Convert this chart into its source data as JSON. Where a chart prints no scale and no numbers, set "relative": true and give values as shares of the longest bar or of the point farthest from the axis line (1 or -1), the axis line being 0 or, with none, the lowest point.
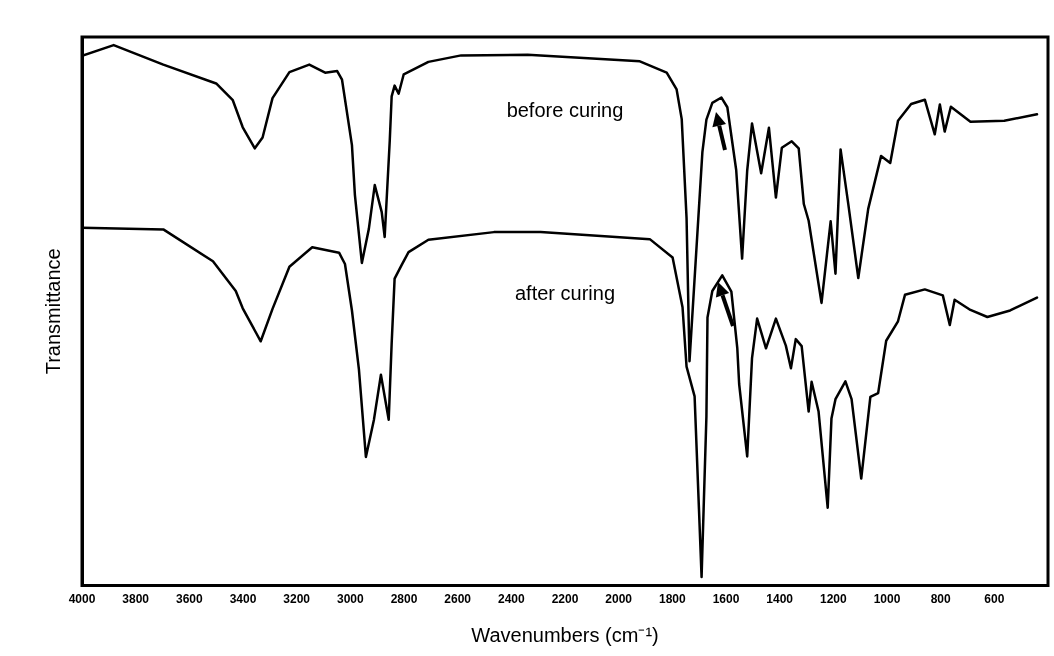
{
  "chart_data": {
    "type": "line",
    "relative": true,
    "xlabel": "Wavenumbers (cm⁻¹)",
    "ylabel": "Transmittance",
    "xlim": [
      4000,
      400
    ],
    "xticks": [
      4000,
      3800,
      3600,
      3400,
      3200,
      3000,
      2800,
      2600,
      2400,
      2200,
      2000,
      1800,
      1600,
      1400,
      1200,
      1000,
      800,
      600
    ],
    "grid": false,
    "legend": false,
    "series": [
      {
        "name": "before curing",
        "color": "#000000",
        "x": [
          4000,
          3882,
          3697,
          3500,
          3438,
          3401,
          3356,
          3327,
          3290,
          3227,
          3153,
          3094,
          3049,
          3031,
          2994,
          2983,
          2957,
          2931,
          2909,
          2883,
          2872,
          2853,
          2846,
          2835,
          2820,
          2801,
          2709,
          2587,
          2339,
          2291,
          1921,
          1821,
          1784,
          1765,
          1747,
          1736,
          1688,
          1673,
          1651,
          1617,
          1595,
          1562,
          1540,
          1521,
          1503,
          1469,
          1440,
          1414,
          1392,
          1355,
          1329,
          1310,
          1292,
          1244,
          1210,
          1192,
          1173,
          1144,
          1107,
          1070,
          1022,
          988,
          959,
          910,
          859,
          822,
          803,
          785,
          762,
          689,
          563,
          441
        ],
        "values": [
          0.98,
          1,
          0.964,
          0.929,
          0.898,
          0.848,
          0.809,
          0.829,
          0.902,
          0.95,
          0.964,
          0.949,
          0.952,
          0.936,
          0.815,
          0.723,
          0.597,
          0.66,
          0.741,
          0.691,
          0.645,
          0.824,
          0.905,
          0.925,
          0.91,
          0.946,
          0.969,
          0.981,
          0.982,
          0.981,
          0.97,
          0.949,
          0.918,
          0.863,
          0.68,
          0.415,
          0.802,
          0.862,
          0.893,
          0.903,
          0.885,
          0.769,
          0.605,
          0.768,
          0.855,
          0.763,
          0.847,
          0.718,
          0.81,
          0.822,
          0.809,
          0.706,
          0.675,
          0.523,
          0.674,
          0.577,
          0.807,
          0.705,
          0.569,
          0.697,
          0.795,
          0.782,
          0.86,
          0.891,
          0.899,
          0.835,
          0.89,
          0.84,
          0.886,
          0.858,
          0.86,
          0.872
        ]
      },
      {
        "name": "after curing",
        "color": "#000000",
        "x": [
          4000,
          3697,
          3512,
          3427,
          3401,
          3334,
          3290,
          3227,
          3142,
          3042,
          3020,
          2994,
          2968,
          2942,
          2912,
          2886,
          2857,
          2846,
          2835,
          2809,
          2783,
          2709,
          2465,
          2291,
          1884,
          1799,
          1762,
          1747,
          1717,
          1691,
          1673,
          1669,
          1651,
          1614,
          1580,
          1558,
          1551,
          1521,
          1503,
          1484,
          1451,
          1414,
          1377,
          1358,
          1340,
          1318,
          1292,
          1281,
          1255,
          1221,
          1207,
          1192,
          1155,
          1132,
          1096,
          1062,
          1033,
          1003,
          959,
          933,
          859,
          792,
          766,
          748,
          689,
          626,
          541,
          441
        ],
        "values": [
          0.662,
          0.659,
          0.6,
          0.545,
          0.513,
          0.452,
          0.512,
          0.59,
          0.626,
          0.616,
          0.595,
          0.509,
          0.4,
          0.238,
          0.307,
          0.39,
          0.307,
          0.448,
          0.568,
          0.593,
          0.617,
          0.64,
          0.654,
          0.654,
          0.641,
          0.607,
          0.515,
          0.405,
          0.35,
          0.016,
          0.313,
          0.496,
          0.545,
          0.574,
          0.544,
          0.44,
          0.373,
          0.239,
          0.421,
          0.494,
          0.439,
          0.494,
          0.444,
          0.402,
          0.456,
          0.443,
          0.322,
          0.377,
          0.322,
          0.144,
          0.309,
          0.345,
          0.378,
          0.345,
          0.198,
          0.349,
          0.356,
          0.453,
          0.489,
          0.538,
          0.548,
          0.537,
          0.482,
          0.529,
          0.51,
          0.497,
          0.509,
          0.533
        ]
      }
    ]
  }
}
